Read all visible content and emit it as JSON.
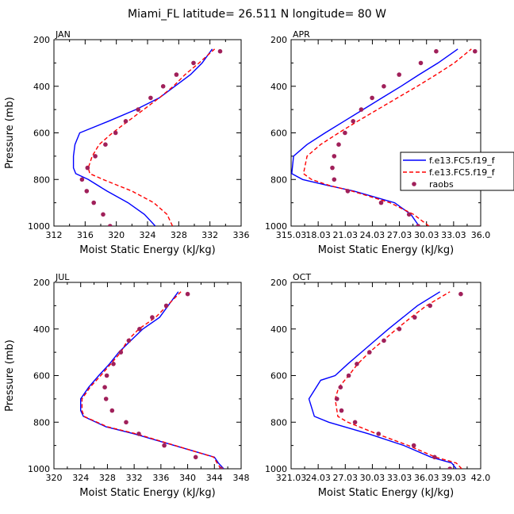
{
  "figure": {
    "title": "Miami_FL  latitude= 26.511 N longitude= 80 W"
  },
  "legend": {
    "placement": "right of APR panel",
    "items": [
      {
        "label": "f.e13.FC5.f19_f",
        "style": "solid",
        "color": "#0000ff"
      },
      {
        "label": "f.e13.FC5.f19_f",
        "style": "dashed",
        "color": "#ff0000"
      },
      {
        "label": "raobs",
        "style": "marker",
        "color": "#a0205a"
      }
    ]
  },
  "chart_data": [
    {
      "type": "line",
      "panel": "JAN",
      "title": "JAN",
      "xlabel": "Moist Static Energy (kJ/kg)",
      "ylabel": "Pressure (mb)",
      "xlim": [
        312,
        336
      ],
      "ylim": [
        1000,
        200
      ],
      "xticks": [
        "312",
        "316",
        "320",
        "324",
        "328",
        "332",
        "336"
      ],
      "yticks": [
        "200",
        "400",
        "600",
        "800",
        "1000"
      ],
      "series": [
        {
          "style": "solid",
          "color": "#0000ff",
          "x": [
            325.0,
            323.6,
            321.5,
            318.8,
            316.4,
            314.8,
            314.5,
            314.5,
            314.7,
            315.3,
            319.0,
            322.5,
            325.5,
            327.5,
            329.5,
            331.0,
            332.3
          ],
          "y": [
            1000,
            950,
            900,
            850,
            800,
            775,
            750,
            700,
            650,
            600,
            550,
            500,
            450,
            400,
            350,
            300,
            240
          ]
        },
        {
          "style": "dashed",
          "color": "#ff0000",
          "x": [
            327.2,
            326.5,
            324.8,
            322.0,
            318.3,
            316.6,
            316.4,
            316.9,
            317.8,
            319.5,
            321.5,
            323.5,
            325.5,
            327.3,
            328.8,
            330.6,
            332.6
          ],
          "y": [
            1000,
            950,
            900,
            850,
            800,
            775,
            750,
            700,
            650,
            600,
            550,
            500,
            450,
            400,
            350,
            300,
            240
          ]
        }
      ],
      "raobs": {
        "color": "#a0205a",
        "x": [
          319.2,
          318.3,
          317.1,
          316.2,
          315.6,
          316.3,
          317.3,
          318.6,
          319.9,
          321.2,
          322.8,
          324.4,
          326.0,
          327.7,
          329.9,
          333.3
        ],
        "y": [
          1000,
          950,
          900,
          850,
          800,
          750,
          700,
          650,
          600,
          550,
          500,
          450,
          400,
          350,
          300,
          250
        ]
      }
    },
    {
      "type": "line",
      "panel": "APR",
      "title": "APR",
      "xlabel": "Moist Static Energy (kJ/kg)",
      "ylabel": "",
      "xlim": [
        315.03,
        336.03
      ],
      "ylim": [
        1000,
        200
      ],
      "xticks": [
        "315.03",
        "18.03",
        "21.03",
        "24.03",
        "27.03",
        "30.03",
        "33.03",
        "36.0"
      ],
      "yticks": [
        "200",
        "400",
        "600",
        "800",
        "1000"
      ],
      "series": [
        {
          "style": "solid",
          "color": "#0000ff",
          "x": [
            329.2,
            328.3,
            326.5,
            322.0,
            319.0,
            316.3,
            315.1,
            315.3,
            316.8,
            318.8,
            320.9,
            323.0,
            325.1,
            327.2,
            329.2,
            331.3,
            333.5
          ],
          "y": [
            1000,
            950,
            900,
            850,
            825,
            800,
            775,
            700,
            650,
            600,
            550,
            500,
            450,
            400,
            350,
            300,
            240
          ]
        },
        {
          "style": "dashed",
          "color": "#ff0000",
          "x": [
            330.3,
            328.6,
            326.0,
            321.8,
            319.2,
            317.3,
            316.4,
            316.8,
            318.3,
            320.3,
            322.4,
            324.6,
            326.8,
            329.0,
            331.1,
            333.1,
            335.0
          ],
          "y": [
            1000,
            950,
            900,
            850,
            825,
            800,
            775,
            700,
            650,
            600,
            550,
            500,
            450,
            400,
            350,
            300,
            240
          ]
        }
      ],
      "raobs": {
        "color": "#a0205a",
        "x": [
          329.1,
          328.1,
          325.0,
          321.3,
          319.8,
          319.6,
          319.8,
          320.3,
          321.0,
          321.9,
          322.8,
          324.0,
          325.3,
          327.0,
          329.4,
          331.1,
          335.4
        ],
        "y": [
          1000,
          950,
          900,
          850,
          800,
          750,
          700,
          650,
          600,
          550,
          500,
          450,
          400,
          350,
          300,
          250,
          250
        ]
      }
    },
    {
      "type": "line",
      "panel": "JUL",
      "title": "JUL",
      "xlabel": "Moist Static Energy (kJ/kg)",
      "ylabel": "Pressure (mb)",
      "xlim": [
        320,
        348
      ],
      "ylim": [
        1000,
        200
      ],
      "xticks": [
        "320",
        "324",
        "328",
        "332",
        "336",
        "340",
        "344",
        "348"
      ],
      "yticks": [
        "200",
        "400",
        "600",
        "800",
        "1000"
      ],
      "series": [
        {
          "style": "solid",
          "color": "#0000ff",
          "x": [
            345.4,
            344.6,
            344.0,
            338.0,
            332.0,
            327.8,
            324.4,
            324.0,
            324.0,
            325.2,
            326.7,
            328.3,
            329.7,
            331.5,
            333.3,
            335.8,
            338.6
          ],
          "y": [
            1000,
            975,
            950,
            900,
            850,
            820,
            775,
            750,
            700,
            650,
            600,
            550,
            500,
            450,
            400,
            350,
            240
          ]
        },
        {
          "style": "dashed",
          "color": "#ff0000",
          "x": [
            345.0,
            344.4,
            343.9,
            338.1,
            332.3,
            328.0,
            324.5,
            324.2,
            324.2,
            325.4,
            327.0,
            328.5,
            330.0,
            331.0,
            332.7,
            335.2,
            339.0
          ],
          "y": [
            1000,
            975,
            950,
            900,
            850,
            820,
            775,
            750,
            700,
            650,
            600,
            550,
            500,
            450,
            400,
            350,
            240
          ]
        }
      ],
      "raobs": {
        "color": "#a0205a",
        "x": [
          345.0,
          341.2,
          336.5,
          332.7,
          330.8,
          328.7,
          327.8,
          327.6,
          327.9,
          328.9,
          330.0,
          331.2,
          332.8,
          334.7,
          336.8,
          340.0
        ],
        "y": [
          1000,
          950,
          900,
          850,
          800,
          750,
          700,
          650,
          600,
          550,
          500,
          450,
          400,
          350,
          300,
          250
        ]
      }
    },
    {
      "type": "line",
      "panel": "OCT",
      "title": "OCT",
      "xlabel": "Moist Static Energy (kJ/kg)",
      "ylabel": "",
      "xlim": [
        321.03,
        342.0
      ],
      "ylim": [
        1000,
        200
      ],
      "xticks": [
        "321.03",
        "24.03",
        "27.03",
        "30.03",
        "33.03",
        "36.03",
        "39.03",
        "42.0"
      ],
      "yticks": [
        "200",
        "400",
        "600",
        "800",
        "1000"
      ],
      "series": [
        {
          "style": "solid",
          "color": "#0000ff",
          "x": [
            339.3,
            338.8,
            336.5,
            333.5,
            329.6,
            325.2,
            323.6,
            323.0,
            324.3,
            325.9,
            327.3,
            328.8,
            330.3,
            331.8,
            333.4,
            335.0,
            337.5
          ],
          "y": [
            1000,
            975,
            950,
            900,
            850,
            800,
            775,
            700,
            620,
            600,
            550,
            500,
            450,
            400,
            350,
            300,
            240
          ]
        },
        {
          "style": "dashed",
          "color": "#ff0000",
          "x": [
            339.9,
            339.3,
            337.0,
            334.0,
            330.5,
            327.3,
            326.2,
            325.9,
            326.3,
            327.4,
            328.4,
            329.7,
            331.2,
            332.7,
            334.3,
            336.0,
            338.6
          ],
          "y": [
            1000,
            975,
            950,
            900,
            850,
            800,
            775,
            700,
            650,
            600,
            550,
            500,
            450,
            400,
            350,
            300,
            240
          ]
        }
      ],
      "raobs": {
        "color": "#a0205a",
        "x": [
          338.6,
          336.9,
          334.6,
          330.7,
          328.1,
          326.6,
          326.1,
          326.5,
          327.4,
          328.3,
          329.7,
          331.3,
          333.0,
          334.7,
          336.4,
          339.8
        ],
        "y": [
          1000,
          950,
          900,
          850,
          800,
          750,
          700,
          650,
          600,
          550,
          500,
          450,
          400,
          350,
          300,
          250
        ]
      }
    }
  ]
}
